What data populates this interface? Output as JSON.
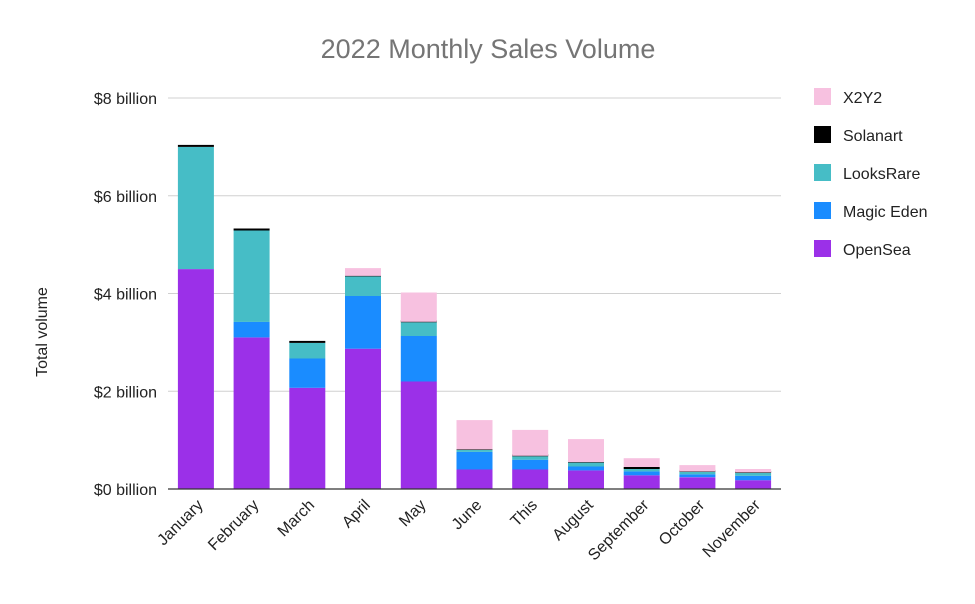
{
  "chart_data": {
    "type": "bar",
    "stacked": true,
    "title": "2022 Monthly Sales Volume",
    "xlabel": "",
    "ylabel": "Total volume",
    "ylim": [
      0,
      8
    ],
    "yticks": [
      {
        "value": 0,
        "label": "$0 billion"
      },
      {
        "value": 2,
        "label": "$2 billion"
      },
      {
        "value": 4,
        "label": "$4 billion"
      },
      {
        "value": 6,
        "label": "$6 billion"
      },
      {
        "value": 8,
        "label": "$8 billion"
      }
    ],
    "grid": true,
    "legend_position": "right",
    "categories": [
      "January",
      "February",
      "March",
      "April",
      "May",
      "June",
      "This",
      "August",
      "September",
      "October",
      "November"
    ],
    "series": [
      {
        "name": "OpenSea",
        "color": "#9b30e8",
        "values": [
          4.5,
          3.1,
          2.07,
          2.87,
          2.2,
          0.4,
          0.4,
          0.38,
          0.28,
          0.24,
          0.18
        ]
      },
      {
        "name": "Magic Eden",
        "color": "#1a8cff",
        "values": [
          0,
          0.32,
          0.6,
          1.08,
          0.93,
          0.36,
          0.2,
          0.08,
          0.08,
          0.06,
          0.09
        ]
      },
      {
        "name": "LooksRare",
        "color": "#46bdc6",
        "values": [
          2.5,
          1.87,
          0.32,
          0.4,
          0.28,
          0.04,
          0.07,
          0.08,
          0.05,
          0.05,
          0.06
        ]
      },
      {
        "name": "Solanart",
        "color": "#000000",
        "values": [
          0.04,
          0.04,
          0.04,
          0.01,
          0.01,
          0.01,
          0.01,
          0.01,
          0.04,
          0.01,
          0.01
        ]
      },
      {
        "name": "X2Y2",
        "color": "#f7c1e0",
        "values": [
          0,
          0,
          0,
          0.16,
          0.6,
          0.6,
          0.53,
          0.47,
          0.18,
          0.13,
          0.07
        ]
      }
    ]
  }
}
